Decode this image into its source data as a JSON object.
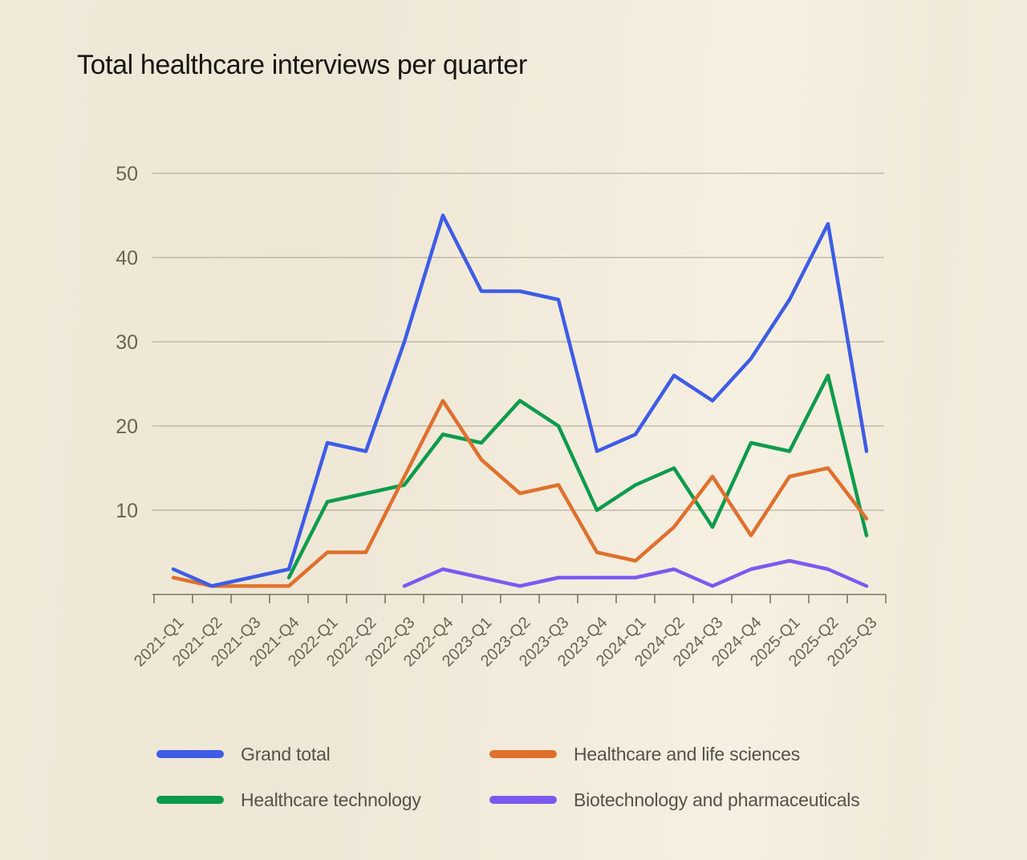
{
  "title": "Total healthcare interviews per quarter",
  "chart_data": {
    "type": "line",
    "title": "Total healthcare interviews per quarter",
    "xlabel": "",
    "ylabel": "",
    "categories": [
      "2021-Q1",
      "2021-Q2",
      "2021-Q3",
      "2021-Q4",
      "2022-Q1",
      "2022-Q2",
      "2022-Q3",
      "2022-Q4",
      "2023-Q1",
      "2023-Q2",
      "2023-Q3",
      "2023-Q4",
      "2024-Q1",
      "2024-Q2",
      "2024-Q3",
      "2024-Q4",
      "2025-Q1",
      "2025-Q2",
      "2025-Q3"
    ],
    "series": [
      {
        "name": "Grand total",
        "color": "#3e5ce5",
        "values": [
          3,
          1,
          2,
          3,
          18,
          17,
          30,
          45,
          36,
          36,
          35,
          17,
          19,
          26,
          23,
          28,
          35,
          44,
          17
        ]
      },
      {
        "name": "Healthcare and life sciences",
        "color": "#e0702d",
        "values": [
          2,
          1,
          1,
          1,
          5,
          5,
          14,
          23,
          16,
          12,
          13,
          5,
          4,
          8,
          14,
          7,
          14,
          15,
          9
        ]
      },
      {
        "name": "Healthcare technology",
        "color": "#0d9b4d",
        "values": [
          null,
          null,
          null,
          2,
          11,
          12,
          13,
          19,
          18,
          23,
          20,
          10,
          13,
          15,
          8,
          18,
          17,
          26,
          7
        ]
      },
      {
        "name": "Biotechnology and pharmaceuticals",
        "color": "#7d58f0",
        "values": [
          null,
          null,
          null,
          null,
          null,
          null,
          1,
          3,
          2,
          1,
          2,
          2,
          2,
          3,
          1,
          3,
          4,
          3,
          1
        ]
      }
    ],
    "y_ticks": [
      10,
      20,
      30,
      40,
      50
    ],
    "ylim": [
      0,
      50
    ],
    "grid": true,
    "legend_position": "bottom"
  },
  "style": {
    "background": "#f1ead9",
    "grid_color": "#a69c8d",
    "axis_color": "#7c7365",
    "tick_label_color": "#6b6355",
    "title_color": "#181512",
    "legend_text_color": "#57514a"
  }
}
